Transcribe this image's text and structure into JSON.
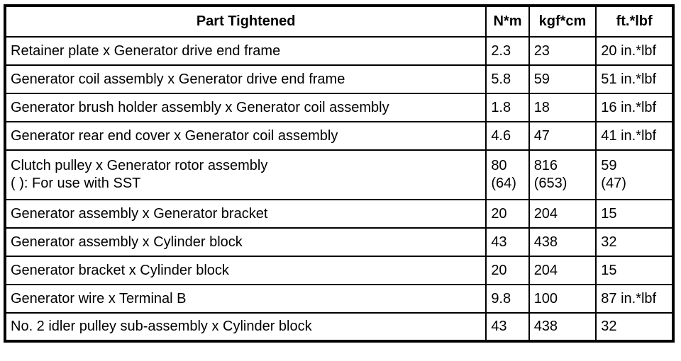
{
  "table": {
    "headers": {
      "part": "Part Tightened",
      "nm": "N*m",
      "kgfcm": "kgf*cm",
      "ftlbf": "ft.*lbf"
    },
    "rows": [
      {
        "part": "Retainer plate x Generator drive end frame",
        "nm": "2.3",
        "kgfcm": "23",
        "ftlbf": "20 in.*lbf"
      },
      {
        "part": "Generator coil assembly x Generator drive end frame",
        "nm": "5.8",
        "kgfcm": "59",
        "ftlbf": "51 in.*lbf"
      },
      {
        "part": "Generator brush holder assembly x Generator coil assembly",
        "nm": "1.8",
        "kgfcm": "18",
        "ftlbf": "16 in.*lbf"
      },
      {
        "part": "Generator rear end cover x Generator coil assembly",
        "nm": "4.6",
        "kgfcm": "47",
        "ftlbf": "41 in.*lbf"
      },
      {
        "part": "Clutch pulley x Generator rotor assembly\n( ): For use with SST",
        "nm": "80\n(64)",
        "kgfcm": "816\n(653)",
        "ftlbf": "59\n(47)"
      },
      {
        "part": "Generator assembly x Generator bracket",
        "nm": "20",
        "kgfcm": "204",
        "ftlbf": "15"
      },
      {
        "part": "Generator assembly x Cylinder block",
        "nm": "43",
        "kgfcm": "438",
        "ftlbf": "32"
      },
      {
        "part": "Generator bracket x Cylinder block",
        "nm": "20",
        "kgfcm": "204",
        "ftlbf": "15"
      },
      {
        "part": "Generator wire x Terminal B",
        "nm": "9.8",
        "kgfcm": "100",
        "ftlbf": "87 in.*lbf"
      },
      {
        "part": "No. 2 idler pulley sub-assembly x Cylinder block",
        "nm": "43",
        "kgfcm": "438",
        "ftlbf": "32"
      }
    ]
  },
  "colors": {
    "border": "#000000",
    "text": "#000000",
    "background": "#ffffff"
  }
}
